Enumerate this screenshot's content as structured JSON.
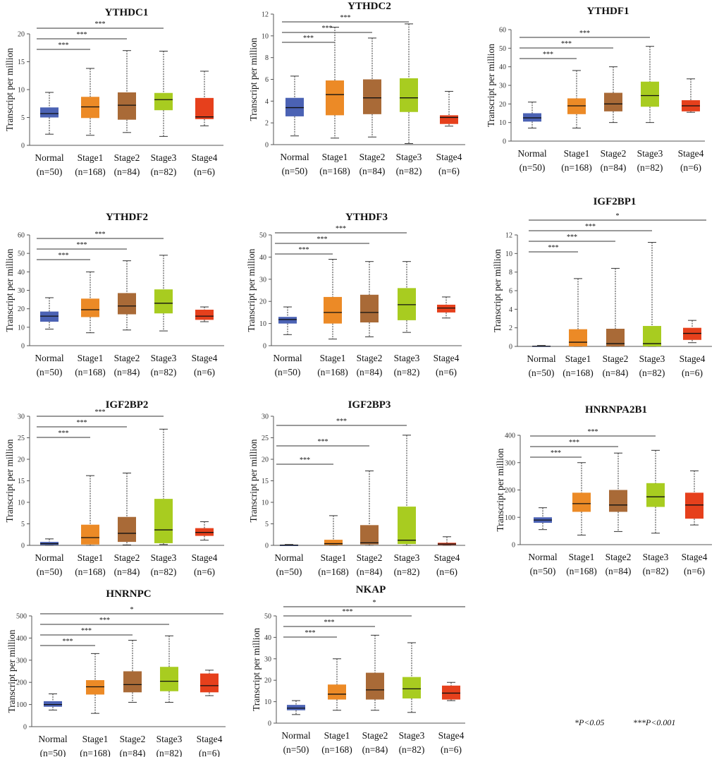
{
  "colors": {
    "Normal": "#4b62b4",
    "Stage1": "#ec8a26",
    "Stage2": "#a96a37",
    "Stage3": "#a8cc20",
    "Stage4": "#e6401c"
  },
  "legend": [
    "*P<0.05",
    "***P<0.001"
  ],
  "chart_data": [
    {
      "type": "box",
      "title": "YTHDC1",
      "ylabel": "Transcript per million",
      "ylim": [
        0,
        20
      ],
      "yticks": [
        0,
        5,
        10,
        15,
        20
      ],
      "categories": [
        "Normal",
        "Stage1",
        "Stage2",
        "Stage3",
        "Stage4"
      ],
      "n": [
        "(n=50)",
        "(n=168)",
        "(n=84)",
        "(n=82)",
        "(n=6)"
      ],
      "boxes": [
        [
          2,
          5,
          5.7,
          6.8,
          9.5
        ],
        [
          1.8,
          4.9,
          6.9,
          8.7,
          13.8
        ],
        [
          2.3,
          4.6,
          7.2,
          9.5,
          17
        ],
        [
          1.6,
          6.3,
          8.2,
          9.4,
          16.9
        ],
        [
          3.5,
          4.7,
          5.1,
          8.5,
          13.3
        ]
      ],
      "significance": [
        {
          "vs": "Stage1",
          "label": "***"
        },
        {
          "vs": "Stage2",
          "label": "***"
        },
        {
          "vs": "Stage3",
          "label": "***"
        }
      ]
    },
    {
      "type": "box",
      "title": "YTHDC2",
      "ylabel": "Transcript per million",
      "ylim": [
        0,
        12
      ],
      "yticks": [
        0,
        2,
        4,
        6,
        8,
        10,
        12
      ],
      "categories": [
        "Normal",
        "Stage1",
        "Stage2",
        "Stage3",
        "Stage4"
      ],
      "n": [
        "(n=50)",
        "(n=168)",
        "(n=84)",
        "(n=82)",
        "(n=6)"
      ],
      "boxes": [
        [
          0.8,
          2.6,
          3.4,
          4.3,
          6.3
        ],
        [
          0.6,
          2.7,
          4.6,
          5.9,
          10.8
        ],
        [
          0.7,
          2.8,
          4.3,
          6,
          9.8
        ],
        [
          0.1,
          3,
          4.3,
          6.1,
          11.1
        ],
        [
          1.7,
          1.9,
          2.5,
          2.7,
          4.9
        ]
      ],
      "significance": [
        {
          "vs": "Stage1",
          "label": "***"
        },
        {
          "vs": "Stage2",
          "label": "***"
        },
        {
          "vs": "Stage3",
          "label": "***"
        }
      ]
    },
    {
      "type": "box",
      "title": "YTHDF1",
      "ylabel": "Transcript per million",
      "ylim": [
        0,
        60
      ],
      "yticks": [
        0,
        10,
        20,
        30,
        40,
        50,
        60
      ],
      "categories": [
        "Normal",
        "Stage1",
        "Stage2",
        "Stage3",
        "Stage4"
      ],
      "n": [
        "(n=50)",
        "(n=168)",
        "(n=84)",
        "(n=82)",
        "(n=6)"
      ],
      "boxes": [
        [
          7,
          10.5,
          12.5,
          15,
          21
        ],
        [
          7,
          14.5,
          19,
          23,
          38
        ],
        [
          10,
          16,
          20,
          26,
          40
        ],
        [
          10,
          18.5,
          24.5,
          32,
          51
        ],
        [
          15.5,
          16,
          19,
          22,
          33.5
        ]
      ],
      "significance": [
        {
          "vs": "Stage1",
          "label": "***"
        },
        {
          "vs": "Stage2",
          "label": "***"
        },
        {
          "vs": "Stage3",
          "label": "***"
        }
      ]
    },
    {
      "type": "box",
      "title": "YTHDF2",
      "ylabel": "Transcript per million",
      "ylim": [
        0,
        60
      ],
      "yticks": [
        0,
        10,
        20,
        30,
        40,
        50,
        60
      ],
      "categories": [
        "Normal",
        "Stage1",
        "Stage2",
        "Stage3",
        "Stage4"
      ],
      "n": [
        "(n=50)",
        "(n=168)",
        "(n=84)",
        "(n=82)",
        "(n=6)"
      ],
      "boxes": [
        [
          9,
          13,
          16,
          18.5,
          26
        ],
        [
          7,
          15.5,
          19.5,
          25.5,
          40
        ],
        [
          8.5,
          17,
          21.5,
          28.5,
          46
        ],
        [
          8,
          17.5,
          23,
          30.5,
          49
        ],
        [
          13,
          14,
          16,
          19.5,
          21
        ]
      ],
      "significance": [
        {
          "vs": "Stage1",
          "label": "***"
        },
        {
          "vs": "Stage2",
          "label": "***"
        },
        {
          "vs": "Stage3",
          "label": "***"
        }
      ]
    },
    {
      "type": "box",
      "title": "YTHDF3",
      "ylabel": "Transcript per million",
      "ylim": [
        0,
        50
      ],
      "yticks": [
        0,
        10,
        20,
        30,
        40,
        50
      ],
      "categories": [
        "Normal",
        "Stage1",
        "Stage2",
        "Stage3",
        "Stage4"
      ],
      "n": [
        "(n=50)",
        "(n=168)",
        "(n=84)",
        "(n=82)",
        "(n=6)"
      ],
      "boxes": [
        [
          5,
          10,
          11.8,
          13,
          17.5
        ],
        [
          3,
          10,
          15,
          22,
          39
        ],
        [
          4,
          10.5,
          15,
          23,
          38
        ],
        [
          6,
          11.5,
          18.5,
          26,
          38
        ],
        [
          12.5,
          15,
          17,
          18.5,
          22
        ]
      ],
      "significance": [
        {
          "vs": "Stage1",
          "label": "***"
        },
        {
          "vs": "Stage2",
          "label": "***"
        },
        {
          "vs": "Stage3",
          "label": "***"
        }
      ]
    },
    {
      "type": "box",
      "title": "IGF2BP1",
      "ylabel": "Transcript per million",
      "ylim": [
        0,
        12
      ],
      "yticks": [
        0,
        2,
        4,
        6,
        8,
        10,
        12
      ],
      "categories": [
        "Normal",
        "Stage1",
        "Stage2",
        "Stage3",
        "Stage4"
      ],
      "n": [
        "(n=50)",
        "(n=168)",
        "(n=84)",
        "(n=82)",
        "(n=6)"
      ],
      "boxes": [
        [
          0,
          0,
          0.02,
          0.06,
          0.1
        ],
        [
          0,
          0,
          0.45,
          1.85,
          7.3
        ],
        [
          0,
          0,
          0.3,
          1.9,
          8.4
        ],
        [
          0,
          0,
          0.3,
          2.2,
          11.2
        ],
        [
          0.4,
          0.7,
          1.4,
          2,
          2.8
        ]
      ],
      "significance": [
        {
          "vs": "Stage1",
          "label": "***"
        },
        {
          "vs": "Stage2",
          "label": "***"
        },
        {
          "vs": "Stage3",
          "label": "***"
        },
        {
          "vs": "Stage4",
          "label": "*"
        }
      ]
    },
    {
      "type": "box",
      "title": "IGF2BP2",
      "ylabel": "Transcript per million",
      "ylim": [
        0,
        30
      ],
      "yticks": [
        0,
        5,
        10,
        15,
        20,
        25,
        30
      ],
      "categories": [
        "Normal",
        "Stage1",
        "Stage2",
        "Stage3",
        "Stage4"
      ],
      "n": [
        "(n=50)",
        "(n=168)",
        "(n=84)",
        "(n=82)",
        "(n=6)"
      ],
      "boxes": [
        [
          0,
          0.1,
          0.4,
          0.8,
          1.5
        ],
        [
          0,
          0.2,
          1.8,
          4.8,
          16.2
        ],
        [
          0.1,
          0.8,
          2.8,
          6.6,
          16.8
        ],
        [
          0.2,
          0.5,
          3.6,
          10.8,
          27
        ],
        [
          1.2,
          2.2,
          3,
          4,
          5.5
        ]
      ],
      "significance": [
        {
          "vs": "Stage1",
          "label": "***"
        },
        {
          "vs": "Stage2",
          "label": "***"
        },
        {
          "vs": "Stage3",
          "label": "***"
        }
      ]
    },
    {
      "type": "box",
      "title": "IGF2BP3",
      "ylabel": "Transcript per million",
      "ylim": [
        0,
        30
      ],
      "yticks": [
        0,
        5,
        10,
        15,
        20,
        25,
        30
      ],
      "categories": [
        "Normal",
        "Stage1",
        "Stage2",
        "Stage3",
        "Stage4"
      ],
      "n": [
        "(n=50)",
        "(n=168)",
        "(n=84)",
        "(n=82)",
        "(n=6)"
      ],
      "boxes": [
        [
          0,
          0,
          0.05,
          0.1,
          0.2
        ],
        [
          0,
          0.1,
          0.4,
          1.3,
          6.9
        ],
        [
          0,
          0.2,
          0.6,
          4.7,
          17.3
        ],
        [
          0,
          0.3,
          1.2,
          9,
          25.6
        ],
        [
          0,
          0.1,
          0.3,
          0.6,
          2
        ]
      ],
      "significance": [
        {
          "vs": "Stage1",
          "label": "***"
        },
        {
          "vs": "Stage2",
          "label": "***"
        },
        {
          "vs": "Stage3",
          "label": "***"
        }
      ]
    },
    {
      "type": "box",
      "title": "HNRNPA2B1",
      "ylabel": "Transcript per million",
      "ylim": [
        0,
        400
      ],
      "yticks": [
        0,
        100,
        200,
        300,
        400
      ],
      "categories": [
        "Normal",
        "Stage1",
        "Stage2",
        "Stage3",
        "Stage4"
      ],
      "n": [
        "(n=50)",
        "(n=168)",
        "(n=84)",
        "(n=82)",
        "(n=6)"
      ],
      "boxes": [
        [
          55,
          80,
          90,
          100,
          135
        ],
        [
          35,
          120,
          150,
          190,
          300
        ],
        [
          48,
          120,
          145,
          200,
          335
        ],
        [
          42,
          138,
          175,
          225,
          345
        ],
        [
          72,
          95,
          145,
          190,
          270
        ]
      ],
      "significance": [
        {
          "vs": "Stage1",
          "label": "***"
        },
        {
          "vs": "Stage2",
          "label": "***"
        },
        {
          "vs": "Stage3",
          "label": "***"
        }
      ]
    },
    {
      "type": "box",
      "title": "HNRNPC",
      "ylabel": "Transcript per million",
      "ylim": [
        0,
        500
      ],
      "yticks": [
        0,
        100,
        200,
        300,
        400,
        500
      ],
      "categories": [
        "Normal",
        "Stage1",
        "Stage2",
        "Stage3",
        "Stage4"
      ],
      "n": [
        "(n=50)",
        "(n=168)",
        "(n=84)",
        "(n=82)",
        "(n=6)"
      ],
      "boxes": [
        [
          75,
          90,
          100,
          115,
          148
        ],
        [
          60,
          145,
          180,
          210,
          330
        ],
        [
          110,
          155,
          190,
          250,
          390
        ],
        [
          110,
          160,
          205,
          270,
          410
        ],
        [
          140,
          155,
          185,
          240,
          255
        ]
      ],
      "significance": [
        {
          "vs": "Stage1",
          "label": "***"
        },
        {
          "vs": "Stage2",
          "label": "***"
        },
        {
          "vs": "Stage3",
          "label": "***"
        },
        {
          "vs": "Stage4",
          "label": "*"
        }
      ]
    },
    {
      "type": "box",
      "title": "NKAP",
      "ylabel": "Transcript per million",
      "ylim": [
        0,
        50
      ],
      "yticks": [
        0,
        10,
        20,
        30,
        40,
        50
      ],
      "categories": [
        "Normal",
        "Stage1",
        "Stage2",
        "Stage3",
        "Stage4"
      ],
      "n": [
        "(n=50)",
        "(n=168)",
        "(n=84)",
        "(n=82)",
        "(n=6)"
      ],
      "boxes": [
        [
          4,
          6,
          7,
          8.5,
          10.5
        ],
        [
          6,
          11,
          13.5,
          18,
          30
        ],
        [
          6,
          11,
          15.5,
          23.5,
          41
        ],
        [
          5,
          11.5,
          16,
          21.5,
          37.5
        ],
        [
          10.5,
          11,
          14,
          17.5,
          19
        ]
      ],
      "significance": [
        {
          "vs": "Stage1",
          "label": "***"
        },
        {
          "vs": "Stage2",
          "label": "***"
        },
        {
          "vs": "Stage3",
          "label": "***"
        },
        {
          "vs": "Stage4",
          "label": "*"
        }
      ]
    }
  ]
}
